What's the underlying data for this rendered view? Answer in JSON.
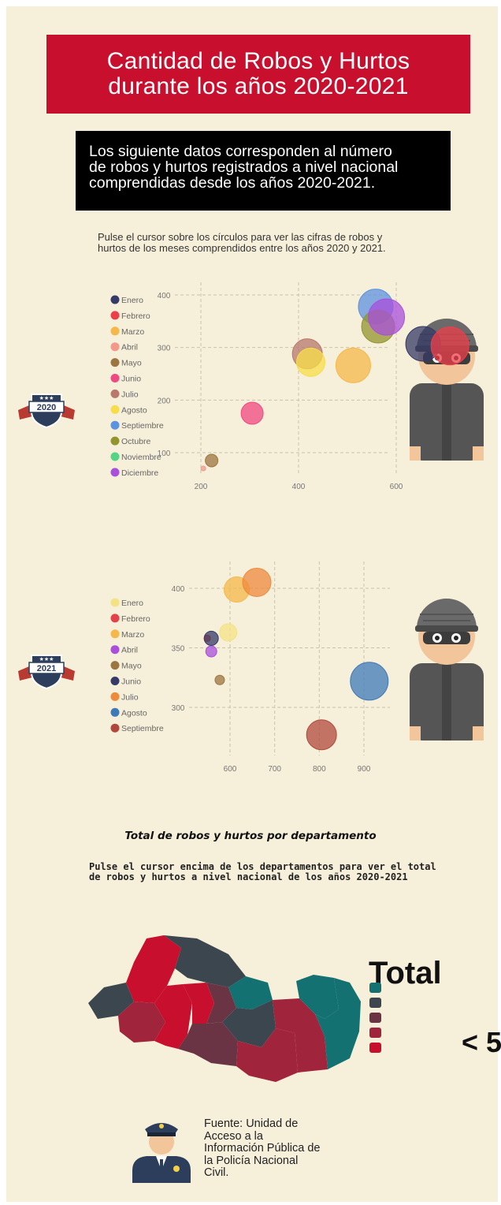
{
  "title_lines": [
    "Cantidad de Robos y Hurtos",
    "durante los años 2020-2021"
  ],
  "intro_lines": [
    "Los siguiente datos corresponden al número",
    "de robos y hurtos registrados a nivel nacional",
    "comprendidas desde los años 2020-2021."
  ],
  "instruction_lines": [
    "Pulse el cursor sobre los círculos para ver las cifras de robos y",
    "hurtos de los meses comprendidos entre los años 2020 y 2021."
  ],
  "badges": {
    "first": "2020",
    "second": "2021"
  },
  "chart_data": [
    {
      "type": "scatter",
      "title": "",
      "xlabel": "",
      "ylabel": "",
      "xlim": [
        180,
        770
      ],
      "ylim": [
        48,
        430
      ],
      "xticks": [
        200,
        400,
        600
      ],
      "yticks": [
        100,
        200,
        300,
        400
      ],
      "grid": true,
      "legend_position": "left",
      "series": [
        {
          "name": "Enero",
          "color": "#353a66",
          "x": 655,
          "y": 307,
          "r": 22
        },
        {
          "name": "Febrero",
          "color": "#ee3f49",
          "x": 710,
          "y": 303,
          "r": 24
        },
        {
          "name": "Marzo",
          "color": "#f6b84a",
          "x": 512,
          "y": 266,
          "r": 22
        },
        {
          "name": "Abril",
          "color": "#f2998c",
          "x": 205,
          "y": 70,
          "r": 3
        },
        {
          "name": "Mayo",
          "color": "#9c7540",
          "x": 222,
          "y": 85,
          "r": 8
        },
        {
          "name": "Junio",
          "color": "#f04880",
          "x": 305,
          "y": 175,
          "r": 14
        },
        {
          "name": "Julio",
          "color": "#b8786c",
          "x": 418,
          "y": 288,
          "r": 19
        },
        {
          "name": "Agosto",
          "color": "#f7dd4a",
          "x": 425,
          "y": 272,
          "r": 18
        },
        {
          "name": "Septiembre",
          "color": "#5c92df",
          "x": 558,
          "y": 378,
          "r": 22
        },
        {
          "name": "Octubre",
          "color": "#93942e",
          "x": 563,
          "y": 340,
          "r": 21
        },
        {
          "name": "Noviembre",
          "color": "#55d486",
          "x": 0,
          "y": 0,
          "r": 0
        },
        {
          "name": "Diciembre",
          "color": "#a94fdc",
          "x": 580,
          "y": 358,
          "r": 23
        }
      ]
    },
    {
      "type": "scatter",
      "title": "",
      "xlabel": "",
      "ylabel": "",
      "xlim": [
        530,
        960
      ],
      "ylim": [
        268,
        425
      ],
      "xticks": [
        600,
        700,
        800,
        900
      ],
      "yticks": [
        300,
        350,
        400
      ],
      "grid": true,
      "legend_position": "left",
      "series": [
        {
          "name": "Enero",
          "color": "#f4e385",
          "x": 596,
          "y": 363,
          "r": 11
        },
        {
          "name": "Febrero",
          "color": "#e5414a",
          "x": 549,
          "y": 358,
          "r": 4
        },
        {
          "name": "Marzo",
          "color": "#f6b84a",
          "x": 615,
          "y": 399,
          "r": 16
        },
        {
          "name": "Abril",
          "color": "#a94fdc",
          "x": 558,
          "y": 347,
          "r": 7
        },
        {
          "name": "Mayo",
          "color": "#9c7540",
          "x": 577,
          "y": 323,
          "r": 6
        },
        {
          "name": "Junio",
          "color": "#353a66",
          "x": 558,
          "y": 358,
          "r": 9
        },
        {
          "name": "Julio",
          "color": "#ee8a3c",
          "x": 660,
          "y": 405,
          "r": 18
        },
        {
          "name": "Agosto",
          "color": "#3e79b8",
          "x": 912,
          "y": 322,
          "r": 24
        },
        {
          "name": "Septiembre",
          "color": "#b0493c",
          "x": 805,
          "y": 277,
          "r": 19
        }
      ]
    }
  ],
  "map": {
    "section_title": "Total de robos y hurtos por departamento",
    "instruction_lines": [
      "Pulse el cursor encima de los departamentos para ver el total",
      "de robos y hurtos a nivel nacional de los años 2020-2021"
    ],
    "legend_title": "Total",
    "legend_first_label": "< 5",
    "legend_colors": [
      "#137171",
      "#3b464e",
      "#6b3445",
      "#a0243c",
      "#c8102e"
    ]
  },
  "source_lines": [
    "Fuente: Unidad de",
    "Acceso a la",
    "Información Pública de",
    "la Policía Nacional",
    "Civil."
  ]
}
